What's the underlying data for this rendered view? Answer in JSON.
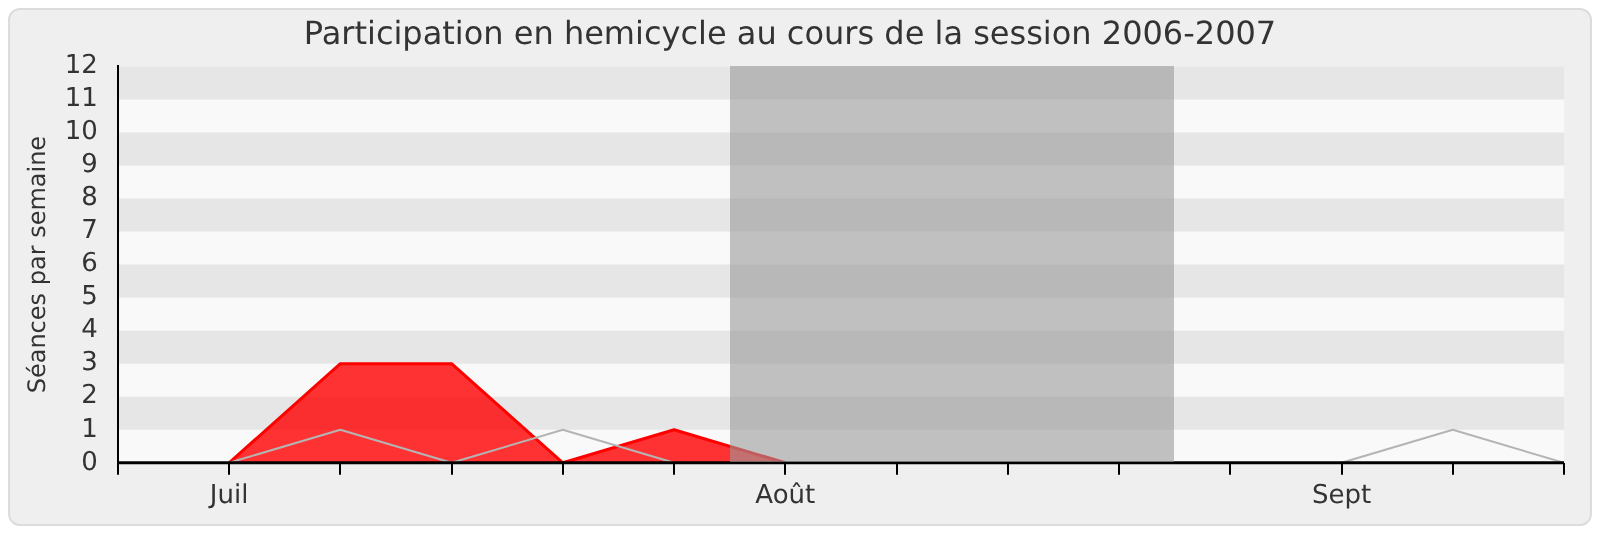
{
  "chart_data": {
    "type": "area",
    "title": "Participation en hemicycle au cours de la session 2006-2007",
    "ylabel": "Séances par semaine",
    "categories": [
      null,
      "Juil",
      null,
      null,
      null,
      null,
      "Août",
      null,
      null,
      null,
      null,
      "Sept",
      null,
      null
    ],
    "ylim": [
      0,
      12
    ],
    "yticks": [
      0,
      1,
      2,
      3,
      4,
      5,
      6,
      7,
      8,
      9,
      10,
      11,
      12
    ],
    "legend": false,
    "marker": "none",
    "series": [
      {
        "color": "#ff0000",
        "values": [
          null,
          0,
          3,
          3,
          0,
          1,
          0,
          null,
          null,
          null,
          null,
          null,
          null,
          null
        ]
      },
      {
        "type": "line",
        "color": "#b4b4b4",
        "values": [
          null,
          0,
          1,
          0,
          1,
          0,
          null,
          null,
          null,
          null,
          null,
          0,
          1,
          0
        ]
      }
    ]
  }
}
